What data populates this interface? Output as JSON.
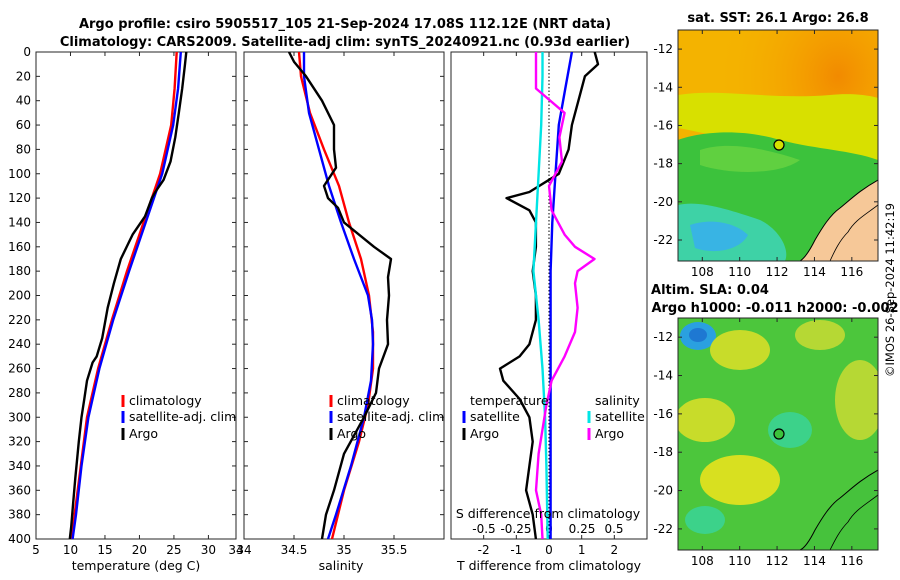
{
  "title_line1": "Argo profile: csiro 5905517_105 21-Sep-2024 17.08S 112.12E (NRT data)",
  "title_line2": "Climatology: CARS2009. Satellite-adj clim: synTS_20240921.nc (0.93d earlier)",
  "watermark": "©IMOS 26-Sep-2024 11:42:19",
  "colors": {
    "climatology": "#ff0000",
    "satellite": "#0000ff",
    "argo": "#000000",
    "salinity": "#ff00ff",
    "salinity_satellite": "#00e5e5"
  },
  "chart_data": [
    {
      "id": "temperature",
      "type": "line",
      "xlabel": "temperature (deg C)",
      "xlim": [
        5,
        34
      ],
      "ylim": [
        400,
        0
      ],
      "xticks": [
        5,
        10,
        15,
        20,
        25,
        30,
        34
      ],
      "yticks": [
        0,
        20,
        40,
        60,
        80,
        100,
        120,
        140,
        160,
        180,
        200,
        220,
        240,
        260,
        280,
        300,
        320,
        340,
        360,
        380,
        400
      ],
      "legend": [
        "climatology",
        "satellite-adj. clim",
        "Argo"
      ],
      "series": [
        {
          "name": "climatology",
          "color": "#ff0000",
          "depth": [
            0,
            30,
            60,
            100,
            140,
            180,
            220,
            260,
            300,
            340,
            380,
            400
          ],
          "values": [
            25.4,
            25.1,
            24.6,
            23.0,
            20.6,
            18.2,
            16.0,
            14.0,
            12.4,
            11.5,
            10.6,
            10.2
          ]
        },
        {
          "name": "satellite-adj. clim",
          "color": "#0000ff",
          "depth": [
            0,
            30,
            60,
            100,
            140,
            180,
            220,
            260,
            300,
            340,
            380,
            400
          ],
          "values": [
            26.0,
            25.6,
            24.9,
            23.3,
            20.9,
            18.5,
            16.2,
            14.2,
            12.6,
            11.6,
            10.8,
            10.3
          ]
        },
        {
          "name": "Argo",
          "color": "#000000",
          "depth": [
            0,
            10,
            30,
            50,
            70,
            90,
            105,
            115,
            120,
            135,
            150,
            170,
            190,
            210,
            235,
            250,
            255,
            270,
            285,
            300,
            320,
            350,
            370,
            390,
            400
          ],
          "values": [
            26.8,
            26.6,
            26.2,
            25.7,
            25.2,
            24.5,
            23.5,
            22.3,
            21.8,
            20.8,
            19.0,
            17.3,
            16.3,
            15.4,
            14.6,
            13.8,
            13.2,
            12.4,
            12.0,
            11.6,
            11.2,
            10.7,
            10.4,
            10.1,
            9.9
          ]
        }
      ]
    },
    {
      "id": "salinity",
      "type": "line",
      "xlabel": "salinity",
      "xlim": [
        34,
        36
      ],
      "ylim": [
        400,
        0
      ],
      "xticks": [
        34,
        34.5,
        35,
        35.5
      ],
      "legend": [
        "climatology",
        "satellite-adj. clim",
        "Argo"
      ],
      "series": [
        {
          "name": "climatology",
          "color": "#ff0000",
          "depth": [
            0,
            20,
            50,
            80,
            110,
            140,
            170,
            200,
            230,
            260,
            290,
            320,
            360,
            400
          ],
          "values": [
            34.55,
            34.57,
            34.66,
            34.8,
            34.95,
            35.05,
            35.17,
            35.25,
            35.29,
            35.29,
            35.24,
            35.15,
            35.0,
            34.88
          ]
        },
        {
          "name": "satellite-adj. clim",
          "color": "#0000ff",
          "depth": [
            0,
            20,
            50,
            80,
            110,
            140,
            170,
            200,
            220,
            240,
            270,
            300,
            340,
            380,
            400
          ],
          "values": [
            34.6,
            34.6,
            34.65,
            34.75,
            34.85,
            34.97,
            35.1,
            35.24,
            35.28,
            35.29,
            35.27,
            35.2,
            35.07,
            34.92,
            34.84
          ]
        },
        {
          "name": "Argo",
          "color": "#000000",
          "depth": [
            0,
            8,
            20,
            40,
            60,
            80,
            95,
            110,
            120,
            128,
            140,
            160,
            170,
            185,
            200,
            220,
            240,
            260,
            280,
            300,
            330,
            360,
            380,
            400
          ],
          "values": [
            34.45,
            34.5,
            34.62,
            34.78,
            34.9,
            34.9,
            34.92,
            34.8,
            34.84,
            34.94,
            35.0,
            35.3,
            35.47,
            35.44,
            35.45,
            35.43,
            35.44,
            35.35,
            35.32,
            35.2,
            35.0,
            34.9,
            34.82,
            34.78
          ]
        }
      ]
    },
    {
      "id": "difference",
      "type": "line",
      "xlabel": "T difference from climatology",
      "xlabel2": "S difference from climatology",
      "xlim": [
        -3,
        3
      ],
      "ylim": [
        400,
        0
      ],
      "xticks": [
        -2,
        -1,
        0,
        1,
        2
      ],
      "xticks2_labels": [
        "-0.5",
        "-0.25",
        "0",
        "0.25",
        "0.5"
      ],
      "legend_titles": [
        "temperature",
        "salinity"
      ],
      "legend": [
        "satellite",
        "Argo",
        "satellite",
        "Argo"
      ],
      "series": [
        {
          "name": "T satellite",
          "color": "#0000ff",
          "depth": [
            0,
            30,
            60,
            100,
            140,
            180,
            220,
            260,
            300,
            340,
            380,
            400
          ],
          "values": [
            0.7,
            0.5,
            0.3,
            0.2,
            0.1,
            0.05,
            0.05,
            0.05,
            0.05,
            0.05,
            0.05,
            0.05
          ]
        },
        {
          "name": "T Argo",
          "color": "#000000",
          "depth": [
            0,
            10,
            20,
            40,
            60,
            80,
            100,
            115,
            120,
            130,
            140,
            160,
            180,
            200,
            220,
            240,
            250,
            260,
            270,
            285,
            300,
            320,
            340,
            360,
            380,
            400
          ],
          "values": [
            1.4,
            1.5,
            1.1,
            0.9,
            0.7,
            0.6,
            0.3,
            -0.6,
            -1.3,
            -0.6,
            -0.4,
            -0.4,
            -0.5,
            -0.4,
            -0.4,
            -0.6,
            -0.9,
            -1.5,
            -1.4,
            -0.9,
            -0.6,
            -0.5,
            -0.6,
            -0.7,
            -0.5,
            -0.4
          ]
        },
        {
          "name": "S satellite",
          "color": "#00e5e5",
          "depth": [
            0,
            20,
            60,
            100,
            140,
            180,
            220,
            260,
            300,
            340,
            400
          ],
          "values": [
            -0.05,
            -0.05,
            -0.06,
            -0.08,
            -0.1,
            -0.12,
            -0.08,
            -0.05,
            -0.03,
            -0.02,
            -0.01
          ]
        },
        {
          "name": "S Argo",
          "color": "#ff00ff",
          "depth": [
            0,
            10,
            30,
            50,
            70,
            90,
            110,
            130,
            150,
            160,
            170,
            180,
            190,
            210,
            230,
            250,
            270,
            290,
            310,
            330,
            360,
            380,
            400
          ],
          "values": [
            -0.1,
            -0.1,
            -0.1,
            0.12,
            0.08,
            0.1,
            0.0,
            0.02,
            0.12,
            0.2,
            0.35,
            0.22,
            0.2,
            0.22,
            0.2,
            0.12,
            0.02,
            -0.02,
            -0.05,
            -0.08,
            -0.1,
            -0.06,
            -0.05
          ]
        }
      ]
    },
    {
      "id": "sst-map",
      "type": "heatmap",
      "title": "sat. SST: 26.1 Argo: 26.8",
      "xticks": [
        108,
        110,
        112,
        114,
        116
      ],
      "yticks": [
        -12,
        -14,
        -16,
        -18,
        -20,
        -22
      ],
      "xlim": [
        106.7,
        117.4
      ],
      "ylim": [
        -23.1,
        -11
      ]
    },
    {
      "id": "sla-map",
      "type": "heatmap",
      "title": "Altim. SLA: 0.04",
      "subtitle": "Argo h1000: -0.011 h2000: -0.002",
      "xticks": [
        108,
        110,
        112,
        114,
        116
      ],
      "yticks": [
        -12,
        -14,
        -16,
        -18,
        -20,
        -22
      ],
      "xlim": [
        106.7,
        117.4
      ],
      "ylim": [
        -23.1,
        -11
      ]
    }
  ]
}
